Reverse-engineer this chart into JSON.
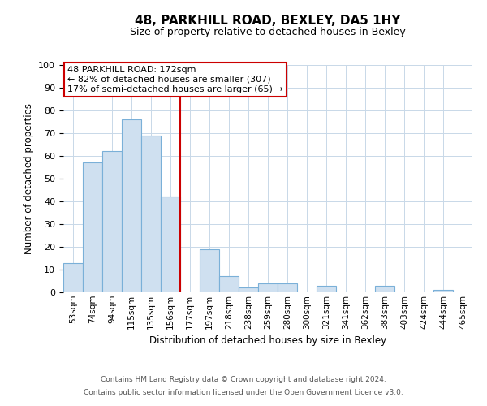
{
  "title": "48, PARKHILL ROAD, BEXLEY, DA5 1HY",
  "subtitle": "Size of property relative to detached houses in Bexley",
  "xlabel": "Distribution of detached houses by size in Bexley",
  "ylabel": "Number of detached properties",
  "bar_labels": [
    "53sqm",
    "74sqm",
    "94sqm",
    "115sqm",
    "135sqm",
    "156sqm",
    "177sqm",
    "197sqm",
    "218sqm",
    "238sqm",
    "259sqm",
    "280sqm",
    "300sqm",
    "321sqm",
    "341sqm",
    "362sqm",
    "383sqm",
    "403sqm",
    "424sqm",
    "444sqm",
    "465sqm"
  ],
  "bar_values": [
    13,
    57,
    62,
    76,
    69,
    42,
    0,
    19,
    7,
    2,
    4,
    4,
    0,
    3,
    0,
    0,
    3,
    0,
    0,
    1,
    0
  ],
  "bar_color": "#cfe0f0",
  "bar_edge_color": "#7ab0d8",
  "vline_x": 6,
  "vline_color": "#cc0000",
  "ylim": [
    0,
    100
  ],
  "yticks": [
    0,
    10,
    20,
    30,
    40,
    50,
    60,
    70,
    80,
    90,
    100
  ],
  "annotation_title": "48 PARKHILL ROAD: 172sqm",
  "annotation_line1": "← 82% of detached houses are smaller (307)",
  "annotation_line2": "17% of semi-detached houses are larger (65) →",
  "footer1": "Contains HM Land Registry data © Crown copyright and database right 2024.",
  "footer2": "Contains public sector information licensed under the Open Government Licence v3.0.",
  "background_color": "#ffffff",
  "grid_color": "#c8d8e8"
}
